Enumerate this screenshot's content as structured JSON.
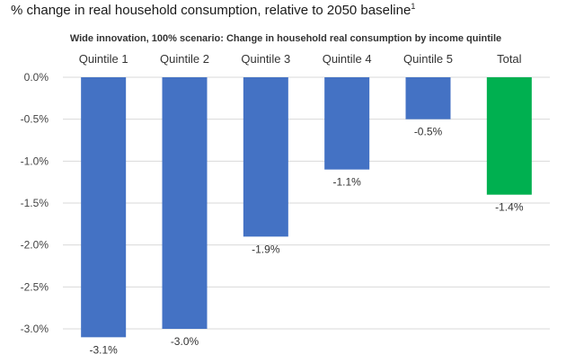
{
  "header": {
    "title": "% change in real household consumption, relative to 2050 baseline",
    "title_superscript": "1"
  },
  "chart_data": {
    "type": "bar",
    "title": "Wide innovation, 100% scenario: Change in household real consumption  by income quintile",
    "categories": [
      "Quintile 1",
      "Quintile 2",
      "Quintile 3",
      "Quintile 4",
      "Quintile 5",
      "Total"
    ],
    "values": [
      -3.1,
      -3.0,
      -1.9,
      -1.1,
      -0.5,
      -1.4
    ],
    "data_labels": [
      "-3.1%",
      "-3.0%",
      "-1.9%",
      "-1.1%",
      "-0.5%",
      "-1.4%"
    ],
    "ylim": [
      -3.0,
      0.0
    ],
    "yticks": [
      0.0,
      -0.5,
      -1.0,
      -1.5,
      -2.0,
      -2.5,
      -3.0
    ],
    "ytick_labels": [
      "0.0%",
      "-0.5%",
      "-1.0%",
      "-1.5%",
      "-2.0%",
      "-2.5%",
      "-3.0%"
    ],
    "category_axis_position": "top",
    "grid": true,
    "legend": false,
    "colors": [
      "#4472c4",
      "#4472c4",
      "#4472c4",
      "#4472c4",
      "#4472c4",
      "#00b050"
    ]
  }
}
